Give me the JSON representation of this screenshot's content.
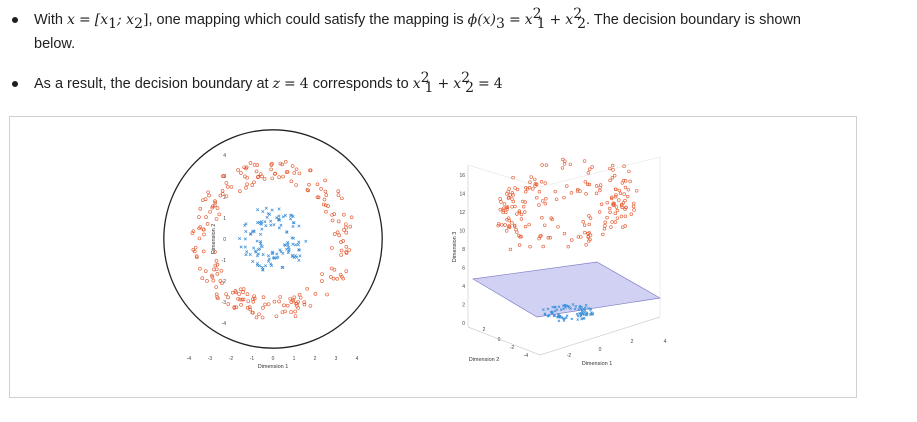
{
  "bullets": {
    "item1": {
      "part1": "With",
      "var_x": "x",
      "eq": "=",
      "vec": "[x",
      "sub1": "1",
      "semi": "; x",
      "sub2": "2",
      "close": "]",
      "part2": ", one mapping which could satisfy the mapping is",
      "phi": "ϕ(x)",
      "phi_sub": "3",
      "eq2": "=",
      "x1": "x",
      "x1_sup": "2",
      "x1_sub": "1",
      "plus": "+",
      "x2": "x",
      "x2_sup": "2",
      "x2_sub": "2",
      "part3": ". The decision boundary is shown",
      "line2": "below."
    },
    "item2": {
      "part1": "As a result, the decision boundary at",
      "z": "z",
      "eq": "=",
      "four": "4",
      "part2": "corresponds to",
      "x1": "x",
      "x1_sup": "2",
      "x1_sub": "1",
      "plus": "+",
      "x2": "x",
      "x2_sup": "2",
      "x2_sub": "2",
      "eq2": "=",
      "four2": "4"
    }
  },
  "colors": {
    "class_outer": "#e4572e",
    "class_inner": "#3a8fd9",
    "boundary_plane": "#c9c9f2",
    "circle": "#222222"
  },
  "chart_data": [
    {
      "type": "scatter",
      "title": "",
      "xlabel": "Dimension 1",
      "ylabel": "Dimension 2",
      "xlim": [
        -4,
        4
      ],
      "ylim": [
        -4,
        4
      ],
      "x_ticks": [
        "-4",
        "-3",
        "-2",
        "-1",
        "0",
        "1",
        "2",
        "3",
        "4"
      ],
      "y_ticks": [
        "-4",
        "-3",
        "-2",
        "-1",
        "0",
        "1",
        "2",
        "3",
        "4"
      ],
      "boundary": {
        "shape": "circle",
        "center": [
          0,
          0
        ],
        "radius": 2
      },
      "series": [
        {
          "marker": "circle",
          "color": "#e4572e",
          "radius_range": [
            2.8,
            3.9
          ]
        },
        {
          "marker": "x",
          "color": "#3a8fd9",
          "radius_range": [
            0.6,
            1.6
          ]
        }
      ]
    },
    {
      "type": "scatter3d",
      "title": "",
      "xlabel": "Dimension 1",
      "ylabel": "Dimension 2",
      "zlabel": "Dimension 3",
      "z_ticks": [
        "0",
        "2",
        "4",
        "6",
        "8",
        "10",
        "12",
        "14",
        "16"
      ],
      "x_ticks": [
        "2",
        "0",
        "-2",
        "-4"
      ],
      "y_ticks": [
        "-2",
        "0",
        "2",
        "4"
      ],
      "plane_z": 4,
      "series": [
        {
          "marker": "circle",
          "color": "#e4572e",
          "z_range": [
            8,
            15
          ]
        },
        {
          "marker": "x",
          "color": "#3a8fd9",
          "z_range": [
            0.5,
            2.5
          ]
        }
      ]
    }
  ]
}
